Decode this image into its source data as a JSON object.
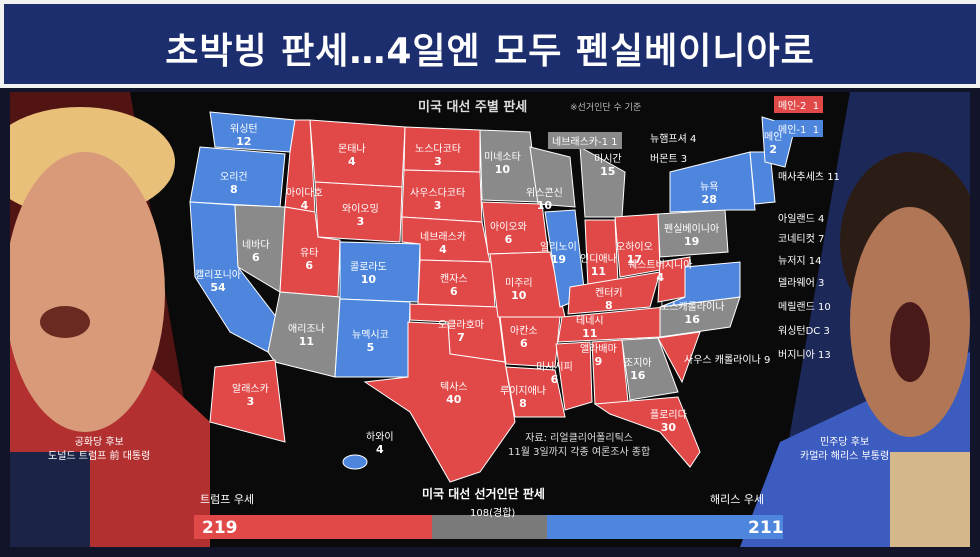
{
  "header": {
    "title": "초박빙 판세…4일엔 모두 펜실베이니아로"
  },
  "map": {
    "title": "미국 대선 주별 판세",
    "note": "※선거인단 수 기준",
    "legend": [
      {
        "label": "메인-2",
        "value": "1",
        "color": "#e14848"
      },
      {
        "label": "메인-1",
        "value": "1",
        "color": "#4d86dc"
      }
    ],
    "colors": {
      "red": "#e14848",
      "blue": "#4d86dc",
      "gray": "#8a8a8a"
    },
    "states": {
      "washington": {
        "name": "워싱턴",
        "votes": "12"
      },
      "oregon": {
        "name": "오리건",
        "votes": "8"
      },
      "california": {
        "name": "캘리포니아",
        "votes": "54"
      },
      "nevada": {
        "name": "네바다",
        "votes": "6"
      },
      "idaho": {
        "name": "아이다호",
        "votes": "4"
      },
      "montana": {
        "name": "몬태나",
        "votes": "4"
      },
      "wyoming": {
        "name": "와이오밍",
        "votes": "3"
      },
      "utah": {
        "name": "유타",
        "votes": "6"
      },
      "arizona": {
        "name": "애리조나",
        "votes": "11"
      },
      "colorado": {
        "name": "콜로라도",
        "votes": "10"
      },
      "newmexico": {
        "name": "뉴멕시코",
        "votes": "5"
      },
      "northdakota": {
        "name": "노스다코타",
        "votes": "3"
      },
      "southdakota": {
        "name": "사우스다코타",
        "votes": "3"
      },
      "nebraska": {
        "name": "네브래스카",
        "votes": "4"
      },
      "kansas": {
        "name": "캔자스",
        "votes": "6"
      },
      "oklahoma": {
        "name": "오클라호마",
        "votes": "7"
      },
      "texas": {
        "name": "텍사스",
        "votes": "40"
      },
      "minnesota": {
        "name": "미네소타",
        "votes": "10"
      },
      "iowa": {
        "name": "아이오와",
        "votes": "6"
      },
      "missouri": {
        "name": "미주리",
        "votes": "10"
      },
      "arkansas": {
        "name": "아칸소",
        "votes": "6"
      },
      "louisiana": {
        "name": "루이지애나",
        "votes": "8"
      },
      "wisconsin": {
        "name": "위스콘신",
        "votes": "10"
      },
      "illinois": {
        "name": "일리노이",
        "votes": "19"
      },
      "michigan": {
        "name": "미시간",
        "votes": "15"
      },
      "indiana": {
        "name": "인디애나",
        "votes": "11"
      },
      "ohio": {
        "name": "오하이오",
        "votes": "17"
      },
      "kentucky": {
        "name": "켄터키",
        "votes": "8"
      },
      "tennessee": {
        "name": "테네시",
        "votes": "11"
      },
      "mississippi": {
        "name": "미시시피",
        "votes": "6"
      },
      "alabama": {
        "name": "앨라배마",
        "votes": "9"
      },
      "georgia": {
        "name": "조지아",
        "votes": "16"
      },
      "florida": {
        "name": "플로리다",
        "votes": "30"
      },
      "westvirginia": {
        "name": "웨스트버지니아",
        "votes": "4"
      },
      "pennsylvania": {
        "name": "펜실베이니아",
        "votes": "19"
      },
      "northcarolina": {
        "name": "노스캐롤라이나",
        "votes": "16"
      },
      "newyork": {
        "name": "뉴욕",
        "votes": "28"
      },
      "maine": {
        "name": "메인",
        "votes": "2"
      },
      "alaska": {
        "name": "알래스카",
        "votes": "3"
      },
      "hawaii": {
        "name": "하와이",
        "votes": "4"
      }
    },
    "nebraska1": "네브래스카-1  1",
    "northeast": [
      {
        "name": "뉴햄프셔",
        "votes": "4"
      },
      {
        "name": "버몬트",
        "votes": "3"
      },
      {
        "name": "매사추세츠",
        "votes": "11"
      },
      {
        "name": "아일랜드",
        "votes": "4"
      },
      {
        "name": "코네티컷",
        "votes": "7"
      },
      {
        "name": "뉴저지",
        "votes": "14"
      },
      {
        "name": "델라웨어",
        "votes": "3"
      },
      {
        "name": "메릴랜드",
        "votes": "10"
      },
      {
        "name": "워싱턴DC",
        "votes": "3"
      },
      {
        "name": "버지니아",
        "votes": "13"
      }
    ],
    "southcarolina": {
      "name": "사우스 캐롤라이나",
      "votes": "9"
    },
    "source_line1": "자료: 리얼클리어폴리틱스",
    "source_line2": "11월 3일까지 각종 여론조사 종합"
  },
  "candidates": {
    "left_line1": "공화당 후보",
    "left_line2": "도널드 트럼프 前 대통령",
    "right_line1": "민주당 후보",
    "right_line2": "카멀라 해리스 부통령"
  },
  "bottom": {
    "title": "미국 대선 선거인단 판세",
    "trump_label": "트럼프 우세",
    "trump_votes": "219",
    "harris_label": "해리스 우세",
    "harris_votes": "211",
    "tossup": "108(경합)"
  }
}
